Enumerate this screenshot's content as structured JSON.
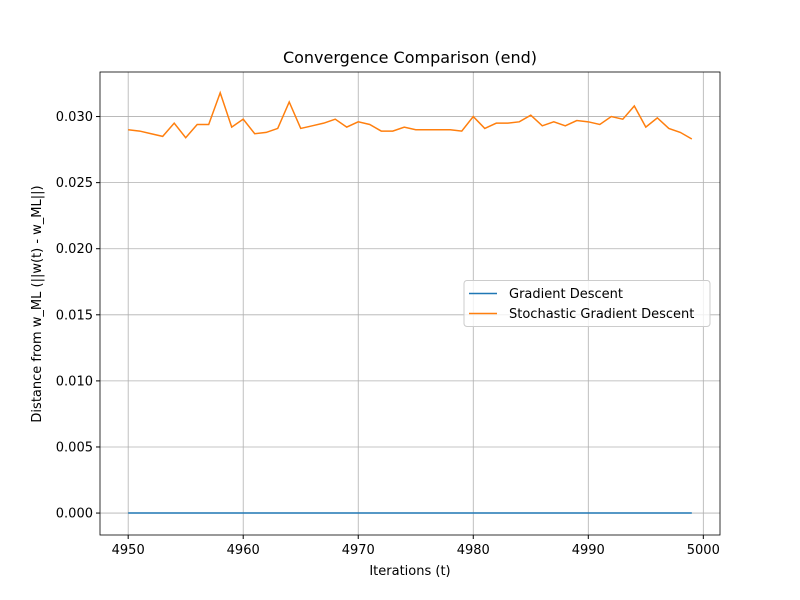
{
  "chart_data": {
    "type": "line",
    "title": "Convergence Comparison (end)",
    "xlabel": "Iterations (t)",
    "ylabel": "Distance from w_ML (||w(t) - w_ML||)",
    "x": [
      4950,
      4951,
      4952,
      4953,
      4954,
      4955,
      4956,
      4957,
      4958,
      4959,
      4960,
      4961,
      4962,
      4963,
      4964,
      4965,
      4966,
      4967,
      4968,
      4969,
      4970,
      4971,
      4972,
      4973,
      4974,
      4975,
      4976,
      4977,
      4978,
      4979,
      4980,
      4981,
      4982,
      4983,
      4984,
      4985,
      4986,
      4987,
      4988,
      4989,
      4990,
      4991,
      4992,
      4993,
      4994,
      4995,
      4996,
      4997,
      4998,
      4999
    ],
    "series": [
      {
        "name": "Gradient Descent",
        "color": "#1f77b4",
        "values": [
          0,
          0,
          0,
          0,
          0,
          0,
          0,
          0,
          0,
          0,
          0,
          0,
          0,
          0,
          0,
          0,
          0,
          0,
          0,
          0,
          0,
          0,
          0,
          0,
          0,
          0,
          0,
          0,
          0,
          0,
          0,
          0,
          0,
          0,
          0,
          0,
          0,
          0,
          0,
          0,
          0,
          0,
          0,
          0,
          0,
          0,
          0,
          0,
          0,
          0
        ]
      },
      {
        "name": "Stochastic Gradient Descent",
        "color": "#ff7f0e",
        "values": [
          0.029,
          0.0289,
          0.0287,
          0.0285,
          0.0295,
          0.0284,
          0.0294,
          0.0294,
          0.0318,
          0.0292,
          0.0298,
          0.0287,
          0.0288,
          0.0291,
          0.0311,
          0.0291,
          0.0293,
          0.0295,
          0.0298,
          0.0292,
          0.0296,
          0.0294,
          0.0289,
          0.0289,
          0.0292,
          0.029,
          0.029,
          0.029,
          0.029,
          0.0289,
          0.03,
          0.0291,
          0.0295,
          0.0295,
          0.0296,
          0.0301,
          0.0293,
          0.0296,
          0.0293,
          0.0297,
          0.0296,
          0.0294,
          0.03,
          0.0298,
          0.0308,
          0.0292,
          0.0299,
          0.0291,
          0.0288,
          0.0283
        ]
      }
    ],
    "xlim": [
      4947.55,
      5001.45
    ],
    "ylim": [
      -0.00166,
      0.03337
    ],
    "xticks": [
      4950,
      4960,
      4970,
      4980,
      4990,
      5000
    ],
    "yticks": [
      {
        "value": 0,
        "label": "0.000"
      },
      {
        "value": 0.005,
        "label": "0.005"
      },
      {
        "value": 0.01,
        "label": "0.010"
      },
      {
        "value": 0.015,
        "label": "0.015"
      },
      {
        "value": 0.02,
        "label": "0.020"
      },
      {
        "value": 0.025,
        "label": "0.025"
      },
      {
        "value": 0.03,
        "label": "0.030"
      }
    ],
    "grid": true,
    "legend": "center right"
  }
}
